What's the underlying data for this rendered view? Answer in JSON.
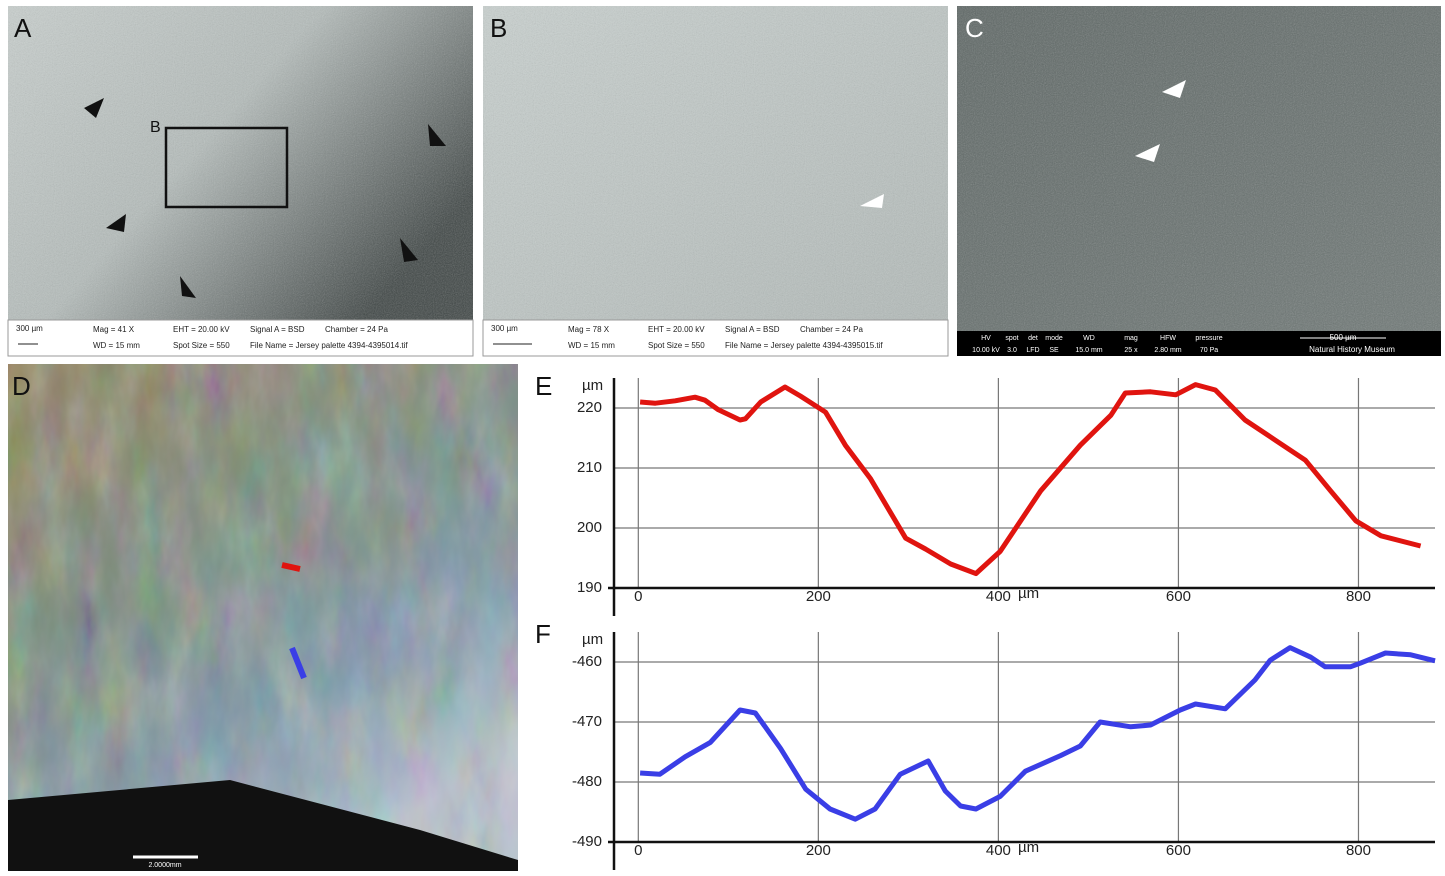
{
  "panels": [
    {
      "label": "A",
      "inset_label": "B",
      "scale_bar": "300 µm",
      "info": [
        [
          "Mag =   41 X",
          "EHT = 20.00 kV",
          "Signal A = BSD",
          "Chamber =    24 Pa"
        ],
        [
          "WD =   15 mm",
          "Spot Size = 550",
          "File Name = Jersey palette 4394-4395014.tif"
        ]
      ]
    },
    {
      "label": "B",
      "scale_bar": "300 µm",
      "info": [
        [
          "Mag =   78 X",
          "EHT = 20.00 kV",
          "Signal A = BSD",
          "Chamber =    24 Pa"
        ],
        [
          "WD =   15 mm",
          "Spot Size = 550",
          "File Name = Jersey palette 4394-4395015.tif"
        ]
      ]
    },
    {
      "label": "C",
      "scale_bar": "500 µm",
      "credit": "Natural History Museum",
      "info_header": [
        "HV",
        "spot",
        "det",
        "mode",
        "WD",
        "mag",
        "HFW",
        "pressure"
      ],
      "info_values": [
        "10.00 kV",
        "3.0",
        "LFD",
        "SE",
        "15.0 mm",
        "25 x",
        "2.80 mm",
        "70 Pa"
      ]
    },
    {
      "label": "D",
      "scale_bar": "2.0000mm"
    }
  ],
  "chart_data": [
    {
      "type": "line",
      "label": "E",
      "y_label": "µm",
      "x_label": "µm",
      "xlim": [
        -27,
        885
      ],
      "ylim": [
        190,
        225
      ],
      "xticks": [
        0,
        200,
        400,
        600,
        800
      ],
      "yticks": [
        190,
        200,
        210,
        220
      ],
      "grid": true,
      "x": [
        2,
        19,
        41,
        63,
        74,
        89,
        113,
        119,
        136,
        163,
        180,
        208,
        230,
        258,
        297,
        319,
        347,
        375,
        402,
        447,
        491,
        525,
        541,
        569,
        597,
        619,
        641,
        674,
        708,
        741,
        769,
        797,
        825,
        869
      ],
      "series": [
        {
          "color": "#e0140f",
          "values": [
            221.0,
            220.8,
            221.2,
            221.8,
            221.3,
            219.7,
            218.0,
            218.2,
            221.0,
            223.5,
            222.0,
            219.3,
            213.8,
            208.2,
            198.3,
            196.5,
            194.0,
            192.4,
            196.1,
            206.2,
            213.8,
            218.8,
            222.5,
            222.7,
            222.2,
            223.9,
            223.0,
            218.0,
            214.6,
            211.3,
            206.2,
            201.2,
            198.7,
            197.0
          ]
        }
      ]
    },
    {
      "type": "line",
      "label": "F",
      "y_label": "µm",
      "x_label": "µm",
      "xlim": [
        -27,
        885
      ],
      "ylim": [
        -490,
        -455
      ],
      "xticks": [
        0,
        200,
        400,
        600,
        800
      ],
      "yticks": [
        -490,
        -480,
        -470,
        -460
      ],
      "grid": true,
      "x": [
        2,
        24,
        52,
        80,
        113,
        130,
        158,
        186,
        213,
        241,
        263,
        291,
        322,
        341,
        358,
        375,
        402,
        430,
        469,
        491,
        513,
        547,
        569,
        602,
        619,
        652,
        685,
        702,
        724,
        747,
        763,
        791,
        802,
        830,
        858,
        885
      ],
      "series": [
        {
          "color": "#3a3ee6",
          "values": [
            -478.5,
            -478.7,
            -475.8,
            -473.4,
            -468.0,
            -468.5,
            -474.4,
            -481.2,
            -484.5,
            -486.2,
            -484.5,
            -478.7,
            -476.5,
            -481.5,
            -484.0,
            -484.5,
            -482.4,
            -478.2,
            -475.6,
            -474.0,
            -470.0,
            -470.8,
            -470.5,
            -468.0,
            -467.0,
            -467.8,
            -463.0,
            -459.7,
            -457.6,
            -459.2,
            -460.8,
            -460.8,
            -460.2,
            -458.5,
            -458.8,
            -459.8
          ]
        }
      ]
    }
  ]
}
